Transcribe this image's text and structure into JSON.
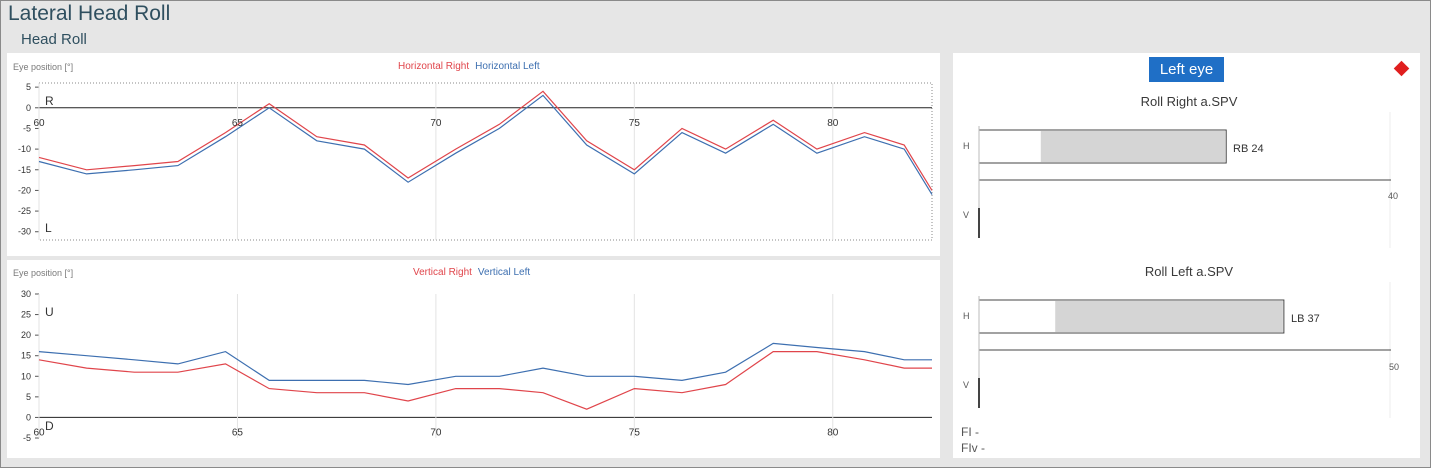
{
  "page": {
    "title": "Lateral Head Roll",
    "subtitle": "Head Roll"
  },
  "horizontal_chart": {
    "ylabel": "Eye position [°]",
    "legend_right": "Horizontal Right",
    "legend_left": "Horizontal Left",
    "top_marker": "R",
    "bottom_marker": "L",
    "y_ticks": [
      "5",
      "0",
      "-5",
      "-10",
      "-15",
      "-20",
      "-25",
      "-30"
    ],
    "x_ticks": [
      "60",
      "65",
      "70",
      "75",
      "80"
    ],
    "colors": {
      "right": "#e0454b",
      "left": "#3d6fb0",
      "slow_phase": "#2e9b3a"
    }
  },
  "vertical_chart": {
    "ylabel": "Eye position [°]",
    "legend_right": "Vertical Right",
    "legend_left": "Vertical Left",
    "top_marker": "U",
    "bottom_marker": "D",
    "y_ticks": [
      "30",
      "25",
      "20",
      "15",
      "10",
      "5",
      "0",
      "-5"
    ],
    "x_ticks": [
      "60",
      "65",
      "70",
      "75",
      "80"
    ]
  },
  "right_panel": {
    "eye_button": "Left eye",
    "roll_right": {
      "title": "Roll Right a.SPV",
      "h_label": "H",
      "v_label": "V",
      "bar_label": "RB 24",
      "value": 24,
      "axis_max": "40"
    },
    "roll_left": {
      "title": "Roll Left a.SPV",
      "h_label": "H",
      "v_label": "V",
      "bar_label": "LB 37",
      "value": 37,
      "axis_max": "50"
    },
    "fi_label": "FI -",
    "fiv_label": "FIv -"
  },
  "chart_data": [
    {
      "type": "line",
      "title": "",
      "ylabel": "Eye position [°]",
      "x": [
        60,
        61.2,
        62.4,
        63.5,
        64.7,
        65.8,
        67,
        68.2,
        69.3,
        70.5,
        71.6,
        72.7,
        73.8,
        75,
        76.2,
        77.3,
        78.5,
        79.6,
        80.8,
        81.8,
        82.5
      ],
      "xlim": [
        60,
        82.5
      ],
      "ylim": [
        -32,
        6
      ],
      "series": [
        {
          "name": "Horizontal Right",
          "values": [
            -12,
            -15,
            -14,
            -13,
            -6,
            1,
            -7,
            -9,
            -17,
            -10,
            -4,
            4,
            -8,
            -15,
            -5,
            -10,
            -3,
            -10,
            -6,
            -9,
            -20
          ]
        },
        {
          "name": "Horizontal Left",
          "values": [
            -13,
            -16,
            -15,
            -14,
            -7,
            0,
            -8,
            -10,
            -18,
            -11,
            -5,
            3,
            -9,
            -16,
            -6,
            -11,
            -4,
            -11,
            -7,
            -10,
            -21
          ]
        }
      ]
    },
    {
      "type": "line",
      "title": "",
      "ylabel": "Eye position [°]",
      "x": [
        60,
        61.2,
        62.4,
        63.5,
        64.7,
        65.8,
        67,
        68.2,
        69.3,
        70.5,
        71.6,
        72.7,
        73.8,
        75,
        76.2,
        77.3,
        78.5,
        79.6,
        80.8,
        81.8,
        82.5
      ],
      "xlim": [
        60,
        82.5
      ],
      "ylim": [
        -5,
        30
      ],
      "series": [
        {
          "name": "Vertical Right",
          "values": [
            14,
            12,
            11,
            11,
            13,
            7,
            6,
            6,
            4,
            7,
            7,
            6,
            2,
            7,
            6,
            8,
            16,
            16,
            14,
            12,
            12
          ]
        },
        {
          "name": "Vertical Left",
          "values": [
            16,
            15,
            14,
            13,
            16,
            9,
            9,
            9,
            8,
            10,
            10,
            12,
            10,
            10,
            9,
            11,
            18,
            17,
            16,
            14,
            14
          ]
        }
      ]
    },
    {
      "type": "bar",
      "title": "Roll Right a.SPV",
      "categories": [
        "H"
      ],
      "values": [
        24
      ],
      "ylim": [
        0,
        40
      ]
    },
    {
      "type": "bar",
      "title": "Roll Left a.SPV",
      "categories": [
        "H"
      ],
      "values": [
        37
      ],
      "ylim": [
        0,
        50
      ]
    }
  ]
}
